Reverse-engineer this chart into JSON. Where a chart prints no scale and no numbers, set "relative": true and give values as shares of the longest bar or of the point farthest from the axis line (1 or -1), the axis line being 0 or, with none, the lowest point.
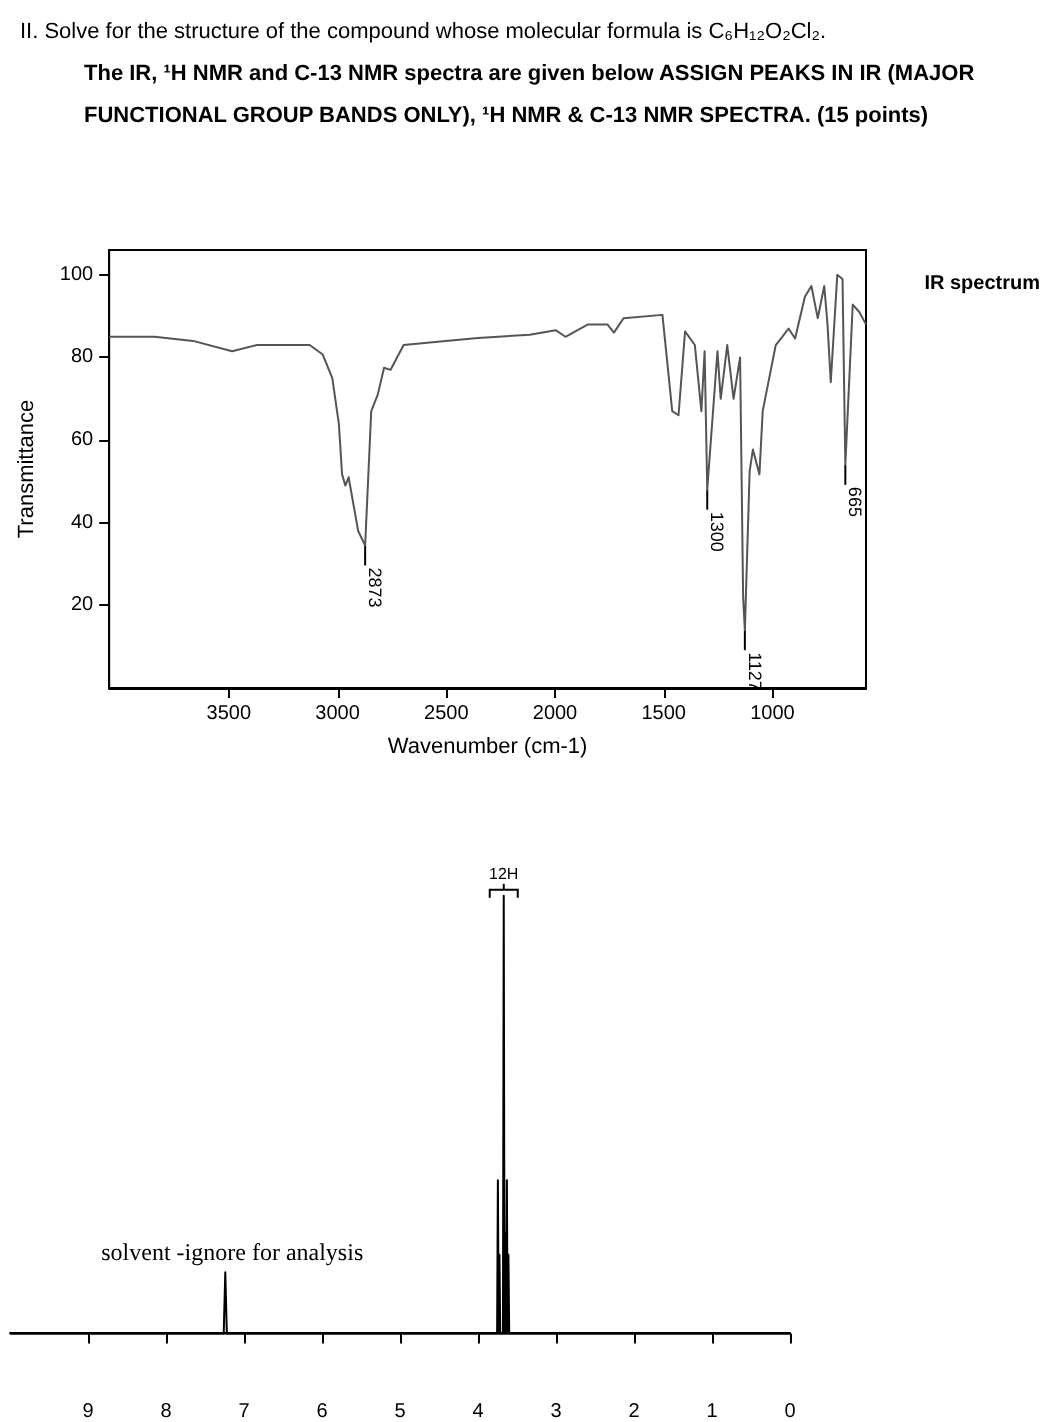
{
  "chart_data": [
    {
      "type": "line",
      "title": "II.   Solve for the structure of the compound whose molecular formula is C₆H₁₂O₂Cl₂.",
      "subtitle": "The IR, ¹H NMR and C-13 NMR spectra are given below ASSIGN PEAKS IN IR (MAJOR FUNCTIONAL GROUP BANDS ONLY), ¹H NMR & C-13 NMR SPECTRA. (15 points)",
      "xlabel": "Wavenumber (cm-1)",
      "ylabel": "Transmittance",
      "color": "#555555",
      "x": [
        4050,
        3842,
        3664,
        3485,
        3370,
        3128,
        3068,
        3024,
        2994,
        2979,
        2964,
        2949,
        2905,
        2873,
        2845,
        2815,
        2786,
        2756,
        2696,
        2503,
        2354,
        2116,
        1997,
        1952,
        1848,
        1759,
        1729,
        1685,
        1506,
        1461,
        1432,
        1402,
        1357,
        1327,
        1312,
        1300,
        1253,
        1238,
        1208,
        1179,
        1149,
        1135,
        1127,
        1105,
        1090,
        1060,
        1045,
        985,
        955,
        926,
        896,
        851,
        821,
        792,
        762,
        747,
        732,
        702,
        678,
        665,
        631,
        601,
        570
      ],
      "values": [
        85,
        85,
        84,
        81.5,
        83,
        83,
        80.7,
        75,
        64,
        51.7,
        49,
        51,
        38,
        34.5,
        67,
        71,
        77.5,
        77,
        83,
        84,
        84.7,
        85.5,
        86.6,
        85,
        88,
        88,
        86,
        89.5,
        90.3,
        67,
        66,
        86.3,
        83,
        67,
        81.5,
        48,
        81.5,
        70,
        83,
        70,
        80,
        22,
        14,
        52.5,
        57.7,
        51.7,
        67,
        83,
        85,
        87,
        84.6,
        94.7,
        97.3,
        89.5,
        97.3,
        88,
        74,
        100,
        99,
        54,
        92.8,
        91,
        88
      ],
      "xlim": [
        4050,
        570
      ],
      "xticks": [
        3500,
        3000,
        2500,
        2000,
        1500,
        1000
      ],
      "ylim": [
        0,
        106
      ],
      "yticks": [
        20,
        40,
        60,
        80,
        100
      ],
      "annotations": [
        {
          "text": "2873",
          "x": 2873,
          "y": 34.5
        },
        {
          "text": "1300",
          "x": 1300,
          "y": 48
        },
        {
          "text": "1127",
          "x": 1127,
          "y": 14
        },
        {
          "text": "665",
          "x": 665,
          "y": 54
        },
        "IR spectrum"
      ]
    },
    {
      "type": "line",
      "relative": true,
      "color": "#000000",
      "tick_labels": "x",
      "x": [
        10,
        7.26,
        7.24,
        7.22,
        3.78,
        3.755,
        3.745,
        3.735,
        3.725,
        3.715,
        3.705,
        3.68,
        3.67,
        3.66,
        3.65,
        3.64,
        3.63,
        3.62,
        3.61,
        3.6,
        3.59,
        3.55,
        0
      ],
      "values": [
        0,
        0,
        0.14,
        0,
        0,
        0,
        0.35,
        0,
        0.18,
        0,
        0,
        0,
        1,
        0,
        0.23,
        0,
        0.35,
        0,
        0.18,
        0,
        0,
        0,
        0
      ],
      "xlim": [
        10,
        0
      ],
      "xticks": [
        0,
        1,
        2,
        3,
        4,
        5,
        6,
        7,
        8,
        9
      ],
      "annotations": [
        {
          "text": "12H",
          "x": 3.67,
          "y": 1
        },
        {
          "text": "solvent -ignore for analysis",
          "x": 7.24,
          "y": 0.14
        }
      ]
    }
  ]
}
